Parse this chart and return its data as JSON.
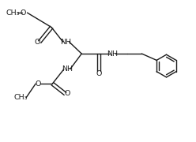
{
  "background": "#ffffff",
  "line_color": "#1a1a1a",
  "line_width": 1.0,
  "font_size": 6.8,
  "figsize": [
    2.48,
    1.8
  ],
  "dpi": 100,
  "xlim": [
    0,
    10.5
  ],
  "ylim": [
    0,
    7.8
  ]
}
